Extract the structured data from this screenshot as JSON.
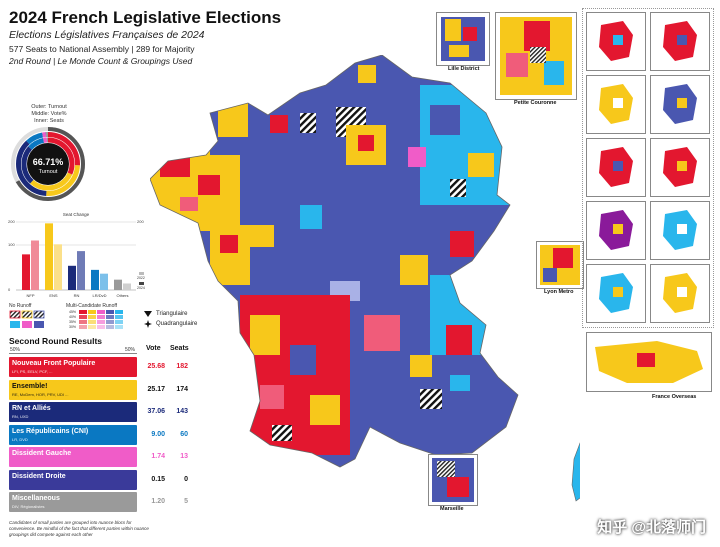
{
  "header": {
    "title": "2024 French Legislative Elections",
    "subtitle": "Elections Législatives Françaises de 2024",
    "line1": "577 Seats to National Assembly | 289 for Majority",
    "line2": "2nd Round | Le Monde Count & Groupings Used"
  },
  "turnout": {
    "legend_outer": "Outer: Turnout",
    "legend_middle": "Middle: Vote%",
    "legend_inner": "Inner: Seats",
    "value": "66.71%",
    "label": "Turnout",
    "fraction": 0.6671
  },
  "seat_change_chart": {
    "title": "Seat Change",
    "tick_left_top": "200",
    "tick_right_top": "200",
    "tick_100": "100",
    "tick_0": "0",
    "categories": [
      "NFP",
      "ENS",
      "RN",
      "LR/DvD",
      "Others"
    ],
    "legend_2022": "2022",
    "legend_2024": "2024",
    "series_2022": [
      131,
      245,
      89,
      74,
      38
    ],
    "series_2024": [
      182,
      168,
      143,
      60,
      24
    ],
    "colors": [
      "#e3172f",
      "#f7c81b",
      "#1b2a7a",
      "#0a78c2",
      "#9a9a9a"
    ],
    "colors_2024": [
      "#f08a98",
      "#fbe08a",
      "#6f7bb6",
      "#7cc0ea",
      "#cfcfcf"
    ]
  },
  "runoff_legend": {
    "no_runoff": "No Runoff",
    "multi": "Multi-Candidate Runoff",
    "pct_rows": [
      "45%",
      "40%",
      "35%",
      "30%"
    ],
    "triangulaire": "Triangulaire",
    "quadrangulaire": "Quadrangulaire"
  },
  "results": {
    "heading": "Second Round Results",
    "scale_left": "50%",
    "scale_right": "50%",
    "col_vote": "Vote",
    "col_seats": "Seats",
    "rows": [
      {
        "name": "Nouveau Front Populaire",
        "sub": "LFI, PS, EELV, PCF, ...",
        "vote": "25.68",
        "seats": "182",
        "color": "#e3172f",
        "text_color": "#e3172f"
      },
      {
        "name": "Ensemble!",
        "sub": "RE, MoDem, HOR, PRV, UDI ...",
        "vote": "25.17",
        "seats": "174",
        "color": "#f7c81b",
        "text_color": "#111111"
      },
      {
        "name": "RN et Alliés",
        "sub": "RN, UXD",
        "vote": "37.06",
        "seats": "143",
        "color": "#1b2a7a",
        "text_color": "#1b2a7a"
      },
      {
        "name": "Les Républicains (CNI)",
        "sub": "LR, DVD",
        "vote": "9.00",
        "seats": "60",
        "color": "#0a78c2",
        "text_color": "#0a78c2"
      },
      {
        "name": "Dissident Gauche",
        "sub": "",
        "vote": "1.74",
        "seats": "13",
        "color": "#f05cc8",
        "text_color": "#f05cc8"
      },
      {
        "name": "Dissident Droite",
        "sub": "",
        "vote": "0.15",
        "seats": "0",
        "color": "#3a3a9a",
        "text_color": "#111111"
      },
      {
        "name": "Miscellaneous",
        "sub": "DIV, Régionalistes",
        "vote": "1.20",
        "seats": "5",
        "color": "#9a9a9a",
        "text_color": "#9a9a9a"
      }
    ],
    "footnote": "Candidates of small parties are grouped into nuance blocs for convenience. Be mindful of the fact that different parties within nuance groupings did compete against each other"
  },
  "insets": {
    "lille": "Lille District",
    "paris": "Petite Couronne",
    "lyon": "Lyon Metro",
    "marseille": "Marseille",
    "overseas": "France Overseas"
  },
  "watermark": "知乎 @北落师门",
  "colors": {
    "nfp": "#e3172f",
    "ens": "#f7c81b",
    "rn": "#1b2a7a",
    "rn_map": "#4a57b0",
    "lr": "#0a78c2",
    "lr_light": "#29b6ec",
    "dg": "#f05cc8",
    "div": "#9a9a9a"
  }
}
